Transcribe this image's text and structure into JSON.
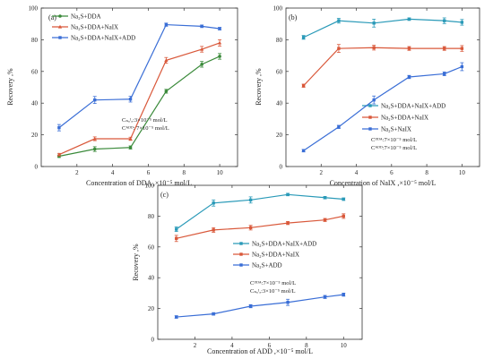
{
  "chart_data": [
    {
      "type": "line",
      "panel_label": "(a)",
      "xlabel": "Concentration of DDA ,×10⁻⁵ mol/L",
      "ylabel": "Recovery ,%",
      "xlim": [
        0,
        11
      ],
      "ylim": [
        0,
        100
      ],
      "x_ticks": [
        2,
        4,
        6,
        8,
        10
      ],
      "y_ticks": [
        0,
        20,
        40,
        60,
        80,
        100
      ],
      "legend_position": "top-left",
      "series": [
        {
          "name": "Na₂S+DDA",
          "color": "#3a8a3a",
          "marker": "circle",
          "x": [
            1,
            3,
            5,
            7,
            9,
            10
          ],
          "y": [
            6.5,
            11,
            12,
            47.5,
            64.5,
            69.5
          ],
          "err": [
            0.8,
            1.5,
            1,
            1.2,
            1.8,
            1.8
          ]
        },
        {
          "name": "Na₂S+DDA+NaIX",
          "color": "#d9583a",
          "marker": "triangle",
          "x": [
            1,
            3,
            5,
            7,
            9,
            10
          ],
          "y": [
            7.5,
            17.5,
            17.5,
            67,
            74,
            78
          ],
          "err": [
            0.8,
            1.2,
            1,
            1.8,
            1.8,
            2
          ]
        },
        {
          "name": "Na₂S+DDA+NaIX+ADD",
          "color": "#3a6ed6",
          "marker": "square",
          "x": [
            1,
            3,
            5,
            7,
            9,
            10
          ],
          "y": [
            24.5,
            42,
            42.5,
            89.5,
            88.5,
            87
          ],
          "err": [
            2,
            2.2,
            1.8,
            1,
            0.8,
            0.8
          ]
        }
      ],
      "annotations": [
        "Cₙₐᴵₓ:3×10⁻⁵ mol/L",
        "Cᴬᴰᴰ: 7×10⁻⁵ mol/L"
      ]
    },
    {
      "type": "line",
      "panel_label": "(b)",
      "xlabel": "Concentration of NaIX ,×10⁻⁵ mol/L",
      "ylabel": "Recovery ,%",
      "xlim": [
        0,
        11
      ],
      "ylim": [
        0,
        100
      ],
      "x_ticks": [
        2,
        4,
        6,
        8,
        10
      ],
      "y_ticks": [
        0,
        20,
        40,
        60,
        80,
        100
      ],
      "legend_position": "bottom-right",
      "series": [
        {
          "name": "Na₂S+DDA+NaIX+ADD",
          "color": "#2a9ab8",
          "marker": "square",
          "x": [
            1,
            3,
            5,
            7,
            9,
            10
          ],
          "y": [
            81.5,
            92,
            90.5,
            93,
            92,
            91
          ],
          "err": [
            1.2,
            1.5,
            2.5,
            0.8,
            1.8,
            1.8
          ]
        },
        {
          "name": "Na₂S+DDA+NaIX",
          "color": "#d9583a",
          "marker": "square",
          "x": [
            1,
            3,
            5,
            7,
            9,
            10
          ],
          "y": [
            51,
            74.5,
            75,
            74.5,
            74.5,
            74.5
          ],
          "err": [
            1,
            2.5,
            1.5,
            1.2,
            1.2,
            1.8
          ]
        },
        {
          "name": "Na₂S+NaIX",
          "color": "#3a6ed6",
          "marker": "square",
          "x": [
            1,
            3,
            5,
            7,
            9,
            10
          ],
          "y": [
            10,
            25,
            42,
            56.5,
            58.5,
            63
          ],
          "err": [
            0.8,
            1,
            2.5,
            1,
            1.2,
            2.5
          ]
        }
      ],
      "annotations": [
        "Cᴰᴰᴬ:7×10⁻⁵ mol/L",
        "Cᴬᴰᴰ:7×10⁻⁵ mol/L"
      ]
    },
    {
      "type": "line",
      "panel_label": "(c)",
      "xlabel": "Concentration of ADD ,×10⁻⁵ mol/L",
      "ylabel": "Recovery ,%",
      "xlim": [
        0,
        11
      ],
      "ylim": [
        0,
        100
      ],
      "x_ticks": [
        2,
        4,
        6,
        8,
        10
      ],
      "y_ticks": [
        0,
        20,
        40,
        60,
        80,
        100
      ],
      "legend_position": "middle-right",
      "series": [
        {
          "name": "Na₂S+DDA+NaIX+ADD",
          "color": "#2a9ab8",
          "marker": "square",
          "x": [
            1,
            3,
            5,
            7,
            9,
            10
          ],
          "y": [
            71.5,
            88.5,
            90.5,
            94,
            92,
            91
          ],
          "err": [
            1.5,
            2,
            2,
            0.8,
            0.8,
            0.8
          ]
        },
        {
          "name": "Na₂S+DDA+NaIX",
          "color": "#d9583a",
          "marker": "square",
          "x": [
            1,
            3,
            5,
            7,
            9,
            10
          ],
          "y": [
            65.5,
            71,
            72.5,
            75.5,
            77.5,
            80
          ],
          "err": [
            2,
            1.5,
            1.5,
            1,
            1,
            1.5
          ]
        },
        {
          "name": "Na₂S+ADD",
          "color": "#3a6ed6",
          "marker": "square",
          "x": [
            1,
            3,
            5,
            7,
            9,
            10
          ],
          "y": [
            14.5,
            16.5,
            21.5,
            24,
            27.5,
            29
          ],
          "err": [
            0.8,
            0.8,
            1,
            2,
            1,
            1
          ]
        }
      ],
      "annotations": [
        "Cᴰᴰᴬ:7×10⁻⁵ mol/L",
        "Cₙₐᴵₓ:3×10⁻⁵ mol/L"
      ]
    }
  ]
}
